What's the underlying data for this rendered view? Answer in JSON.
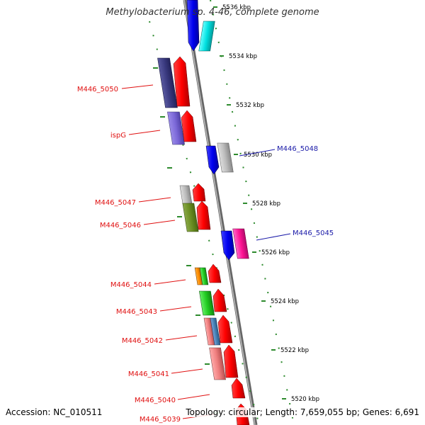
{
  "title": "Methylobacterium sp. 4-46, complete genome",
  "accession": "Accession: NC_010511",
  "topology": "Topology: circular; Length: 7,659,055 bp; Genes: 6,691",
  "colors": {
    "label_left": "#e01010",
    "label_right": "#1a1aa8",
    "scale_dots": "#2e8b2e",
    "backbone": "#888888"
  },
  "scale_ticks": [
    "5536 kbp",
    "5534 kbp",
    "5532 kbp",
    "5530 kbp",
    "5528 kbp",
    "5526 kbp",
    "5524 kbp",
    "5522 kbp",
    "5520 kbp"
  ],
  "labels_left": [
    "M446_5050",
    "ispG",
    "M446_5047",
    "M446_5046",
    "M446_5044",
    "M446_5043",
    "M446_5042",
    "M446_5041",
    "M446_5040",
    "M446_5039"
  ],
  "labels_right": [
    "M446_5048",
    "M446_5045"
  ]
}
